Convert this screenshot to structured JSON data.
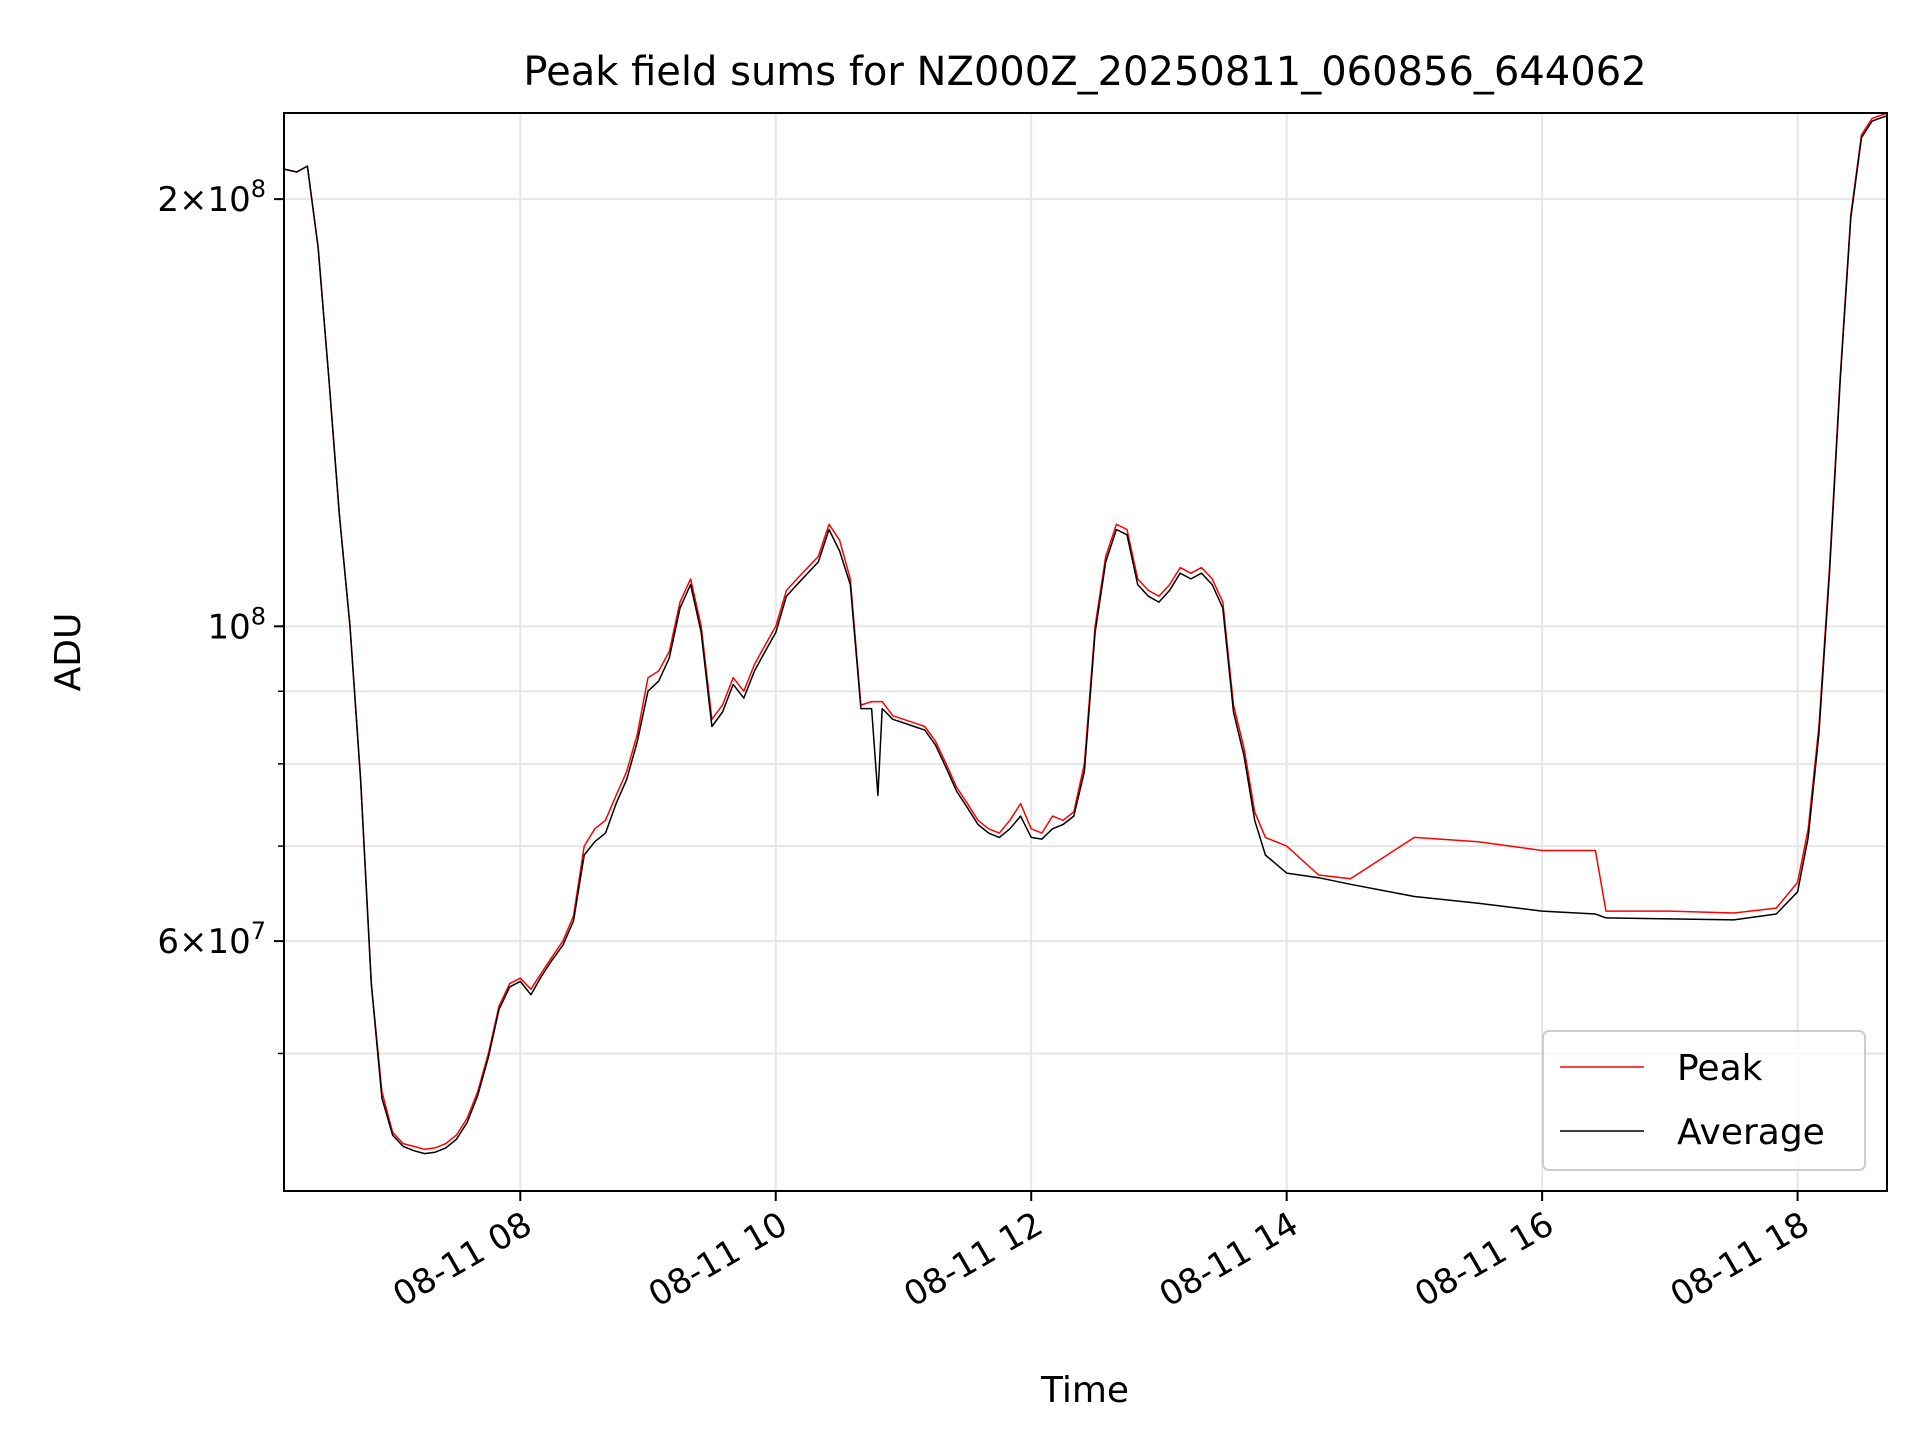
{
  "chart_data": {
    "type": "line",
    "title": "Peak field sums for NZ000Z_20250811_060856_644062",
    "xlabel": "Time",
    "ylabel": "ADU",
    "y_scale": "log",
    "x_range": [
      "2025-08-11 06:09",
      "2025-08-11 18:42"
    ],
    "ylim": [
      40000000,
      230000000
    ],
    "grid": true,
    "legend_position": "lower right",
    "x_ticks": [
      {
        "t": "2025-08-11 08:00",
        "label": "08-11 08"
      },
      {
        "t": "2025-08-11 10:00",
        "label": "08-11 10"
      },
      {
        "t": "2025-08-11 12:00",
        "label": "08-11 12"
      },
      {
        "t": "2025-08-11 14:00",
        "label": "08-11 14"
      },
      {
        "t": "2025-08-11 16:00",
        "label": "08-11 16"
      },
      {
        "t": "2025-08-11 18:00",
        "label": "08-11 18"
      }
    ],
    "y_major_ticks": [
      {
        "value": 60000000,
        "mantissa": "6",
        "exponent": "7"
      },
      {
        "value": 100000000,
        "mantissa": "",
        "exponent": "8"
      },
      {
        "value": 200000000,
        "mantissa": "2",
        "exponent": "8"
      }
    ],
    "y_minor_ticks": [
      50000000,
      70000000,
      80000000,
      90000000
    ],
    "series": [
      {
        "name": "Peak",
        "color": "#ff0000",
        "points": [
          [
            "2025-08-11 06:09",
            210000000
          ],
          [
            "2025-08-11 06:15",
            209000000
          ],
          [
            "2025-08-11 06:20",
            211000000
          ],
          [
            "2025-08-11 06:25",
            185000000
          ],
          [
            "2025-08-11 06:30",
            150000000
          ],
          [
            "2025-08-11 06:35",
            120000000
          ],
          [
            "2025-08-11 06:40",
            100000000
          ],
          [
            "2025-08-11 06:45",
            78000000
          ],
          [
            "2025-08-11 06:50",
            56000000
          ],
          [
            "2025-08-11 06:55",
            47000000
          ],
          [
            "2025-08-11 07:00",
            44000000
          ],
          [
            "2025-08-11 07:05",
            43200000
          ],
          [
            "2025-08-11 07:10",
            43000000
          ],
          [
            "2025-08-11 07:15",
            42800000
          ],
          [
            "2025-08-11 07:20",
            42900000
          ],
          [
            "2025-08-11 07:25",
            43200000
          ],
          [
            "2025-08-11 07:30",
            43800000
          ],
          [
            "2025-08-11 07:35",
            45000000
          ],
          [
            "2025-08-11 07:40",
            47000000
          ],
          [
            "2025-08-11 07:45",
            50000000
          ],
          [
            "2025-08-11 07:50",
            54000000
          ],
          [
            "2025-08-11 07:55",
            56000000
          ],
          [
            "2025-08-11 08:00",
            56500000
          ],
          [
            "2025-08-11 08:05",
            55500000
          ],
          [
            "2025-08-11 08:10",
            57000000
          ],
          [
            "2025-08-11 08:15",
            58500000
          ],
          [
            "2025-08-11 08:20",
            60000000
          ],
          [
            "2025-08-11 08:25",
            62500000
          ],
          [
            "2025-08-11 08:30",
            70000000
          ],
          [
            "2025-08-11 08:35",
            72000000
          ],
          [
            "2025-08-11 08:40",
            73000000
          ],
          [
            "2025-08-11 08:45",
            76000000
          ],
          [
            "2025-08-11 08:50",
            79000000
          ],
          [
            "2025-08-11 08:55",
            84000000
          ],
          [
            "2025-08-11 09:00",
            92000000
          ],
          [
            "2025-08-11 09:05",
            93000000
          ],
          [
            "2025-08-11 09:10",
            96000000
          ],
          [
            "2025-08-11 09:15",
            104000000
          ],
          [
            "2025-08-11 09:20",
            108000000
          ],
          [
            "2025-08-11 09:25",
            100000000
          ],
          [
            "2025-08-11 09:30",
            86000000
          ],
          [
            "2025-08-11 09:35",
            88000000
          ],
          [
            "2025-08-11 09:40",
            92000000
          ],
          [
            "2025-08-11 09:45",
            90000000
          ],
          [
            "2025-08-11 09:50",
            94000000
          ],
          [
            "2025-08-11 09:55",
            97000000
          ],
          [
            "2025-08-11 10:00",
            100000000
          ],
          [
            "2025-08-11 10:05",
            106000000
          ],
          [
            "2025-08-11 10:10",
            108000000
          ],
          [
            "2025-08-11 10:15",
            110000000
          ],
          [
            "2025-08-11 10:20",
            112000000
          ],
          [
            "2025-08-11 10:25",
            118000000
          ],
          [
            "2025-08-11 10:30",
            115000000
          ],
          [
            "2025-08-11 10:35",
            108000000
          ],
          [
            "2025-08-11 10:40",
            88000000
          ],
          [
            "2025-08-11 10:45",
            88500000
          ],
          [
            "2025-08-11 10:50",
            88500000
          ],
          [
            "2025-08-11 10:55",
            86500000
          ],
          [
            "2025-08-11 11:00",
            86000000
          ],
          [
            "2025-08-11 11:05",
            85500000
          ],
          [
            "2025-08-11 11:10",
            85000000
          ],
          [
            "2025-08-11 11:15",
            83000000
          ],
          [
            "2025-08-11 11:20",
            80000000
          ],
          [
            "2025-08-11 11:25",
            77000000
          ],
          [
            "2025-08-11 11:30",
            75000000
          ],
          [
            "2025-08-11 11:35",
            73000000
          ],
          [
            "2025-08-11 11:40",
            72000000
          ],
          [
            "2025-08-11 11:45",
            71500000
          ],
          [
            "2025-08-11 11:50",
            73000000
          ],
          [
            "2025-08-11 11:55",
            75000000
          ],
          [
            "2025-08-11 12:00",
            72000000
          ],
          [
            "2025-08-11 12:05",
            71500000
          ],
          [
            "2025-08-11 12:10",
            73500000
          ],
          [
            "2025-08-11 12:15",
            73000000
          ],
          [
            "2025-08-11 12:20",
            74000000
          ],
          [
            "2025-08-11 12:25",
            80000000
          ],
          [
            "2025-08-11 12:30",
            100000000
          ],
          [
            "2025-08-11 12:35",
            112000000
          ],
          [
            "2025-08-11 12:40",
            118000000
          ],
          [
            "2025-08-11 12:45",
            117000000
          ],
          [
            "2025-08-11 12:50",
            108000000
          ],
          [
            "2025-08-11 12:55",
            106000000
          ],
          [
            "2025-08-11 13:00",
            105000000
          ],
          [
            "2025-08-11 13:05",
            107000000
          ],
          [
            "2025-08-11 13:10",
            110000000
          ],
          [
            "2025-08-11 13:15",
            109000000
          ],
          [
            "2025-08-11 13:20",
            110000000
          ],
          [
            "2025-08-11 13:25",
            108000000
          ],
          [
            "2025-08-11 13:30",
            104000000
          ],
          [
            "2025-08-11 13:35",
            88000000
          ],
          [
            "2025-08-11 13:40",
            82000000
          ],
          [
            "2025-08-11 13:45",
            74000000
          ],
          [
            "2025-08-11 13:50",
            71000000
          ],
          [
            "2025-08-11 14:00",
            70000000
          ],
          [
            "2025-08-11 14:15",
            66800000
          ],
          [
            "2025-08-11 14:30",
            66400000
          ],
          [
            "2025-08-11 15:00",
            71000000
          ],
          [
            "2025-08-11 15:30",
            70500000
          ],
          [
            "2025-08-11 16:00",
            69500000
          ],
          [
            "2025-08-11 16:25",
            69500000
          ],
          [
            "2025-08-11 16:30",
            63000000
          ],
          [
            "2025-08-11 17:00",
            63000000
          ],
          [
            "2025-08-11 17:30",
            62800000
          ],
          [
            "2025-08-11 17:50",
            63300000
          ],
          [
            "2025-08-11 18:00",
            66000000
          ],
          [
            "2025-08-11 18:05",
            72000000
          ],
          [
            "2025-08-11 18:10",
            85000000
          ],
          [
            "2025-08-11 18:15",
            110000000
          ],
          [
            "2025-08-11 18:20",
            150000000
          ],
          [
            "2025-08-11 18:25",
            195000000
          ],
          [
            "2025-08-11 18:30",
            222000000
          ],
          [
            "2025-08-11 18:35",
            228000000
          ],
          [
            "2025-08-11 18:42",
            230000000
          ]
        ]
      },
      {
        "name": "Average",
        "color": "#000000",
        "points": [
          [
            "2025-08-11 06:09",
            210000000
          ],
          [
            "2025-08-11 06:15",
            209000000
          ],
          [
            "2025-08-11 06:20",
            211000000
          ],
          [
            "2025-08-11 06:25",
            185000000
          ],
          [
            "2025-08-11 06:30",
            150000000
          ],
          [
            "2025-08-11 06:35",
            120000000
          ],
          [
            "2025-08-11 06:40",
            100000000
          ],
          [
            "2025-08-11 06:45",
            78000000
          ],
          [
            "2025-08-11 06:50",
            56000000
          ],
          [
            "2025-08-11 06:55",
            46500000
          ],
          [
            "2025-08-11 07:00",
            43800000
          ],
          [
            "2025-08-11 07:05",
            43000000
          ],
          [
            "2025-08-11 07:10",
            42700000
          ],
          [
            "2025-08-11 07:15",
            42500000
          ],
          [
            "2025-08-11 07:20",
            42600000
          ],
          [
            "2025-08-11 07:25",
            42900000
          ],
          [
            "2025-08-11 07:30",
            43500000
          ],
          [
            "2025-08-11 07:35",
            44700000
          ],
          [
            "2025-08-11 07:40",
            46700000
          ],
          [
            "2025-08-11 07:45",
            49700000
          ],
          [
            "2025-08-11 07:50",
            53700000
          ],
          [
            "2025-08-11 07:55",
            55700000
          ],
          [
            "2025-08-11 08:00",
            56200000
          ],
          [
            "2025-08-11 08:05",
            55000000
          ],
          [
            "2025-08-11 08:10",
            56700000
          ],
          [
            "2025-08-11 08:15",
            58200000
          ],
          [
            "2025-08-11 08:20",
            59600000
          ],
          [
            "2025-08-11 08:25",
            62000000
          ],
          [
            "2025-08-11 08:30",
            69000000
          ],
          [
            "2025-08-11 08:35",
            70500000
          ],
          [
            "2025-08-11 08:40",
            71500000
          ],
          [
            "2025-08-11 08:45",
            75000000
          ],
          [
            "2025-08-11 08:50",
            78000000
          ],
          [
            "2025-08-11 08:55",
            83000000
          ],
          [
            "2025-08-11 09:00",
            90000000
          ],
          [
            "2025-08-11 09:05",
            91500000
          ],
          [
            "2025-08-11 09:10",
            95000000
          ],
          [
            "2025-08-11 09:15",
            103000000
          ],
          [
            "2025-08-11 09:20",
            107000000
          ],
          [
            "2025-08-11 09:25",
            99000000
          ],
          [
            "2025-08-11 09:30",
            85000000
          ],
          [
            "2025-08-11 09:35",
            87000000
          ],
          [
            "2025-08-11 09:40",
            91000000
          ],
          [
            "2025-08-11 09:45",
            89000000
          ],
          [
            "2025-08-11 09:50",
            93000000
          ],
          [
            "2025-08-11 09:55",
            96000000
          ],
          [
            "2025-08-11 10:00",
            99000000
          ],
          [
            "2025-08-11 10:05",
            105000000
          ],
          [
            "2025-08-11 10:10",
            107000000
          ],
          [
            "2025-08-11 10:15",
            109000000
          ],
          [
            "2025-08-11 10:20",
            111000000
          ],
          [
            "2025-08-11 10:25",
            117000000
          ],
          [
            "2025-08-11 10:30",
            113000000
          ],
          [
            "2025-08-11 10:35",
            107000000
          ],
          [
            "2025-08-11 10:40",
            87500000
          ],
          [
            "2025-08-11 10:45",
            87500000
          ],
          [
            "2025-08-11 10:48",
            76000000
          ],
          [
            "2025-08-11 10:50",
            87500000
          ],
          [
            "2025-08-11 10:55",
            86000000
          ],
          [
            "2025-08-11 11:00",
            85500000
          ],
          [
            "2025-08-11 11:05",
            85000000
          ],
          [
            "2025-08-11 11:10",
            84500000
          ],
          [
            "2025-08-11 11:15",
            82500000
          ],
          [
            "2025-08-11 11:20",
            79500000
          ],
          [
            "2025-08-11 11:25",
            76500000
          ],
          [
            "2025-08-11 11:30",
            74500000
          ],
          [
            "2025-08-11 11:35",
            72500000
          ],
          [
            "2025-08-11 11:40",
            71500000
          ],
          [
            "2025-08-11 11:45",
            71000000
          ],
          [
            "2025-08-11 11:50",
            72000000
          ],
          [
            "2025-08-11 11:55",
            73500000
          ],
          [
            "2025-08-11 12:00",
            71000000
          ],
          [
            "2025-08-11 12:05",
            70800000
          ],
          [
            "2025-08-11 12:10",
            72000000
          ],
          [
            "2025-08-11 12:15",
            72500000
          ],
          [
            "2025-08-11 12:20",
            73500000
          ],
          [
            "2025-08-11 12:25",
            79000000
          ],
          [
            "2025-08-11 12:30",
            99000000
          ],
          [
            "2025-08-11 12:35",
            111000000
          ],
          [
            "2025-08-11 12:40",
            117000000
          ],
          [
            "2025-08-11 12:45",
            116000000
          ],
          [
            "2025-08-11 12:50",
            107000000
          ],
          [
            "2025-08-11 12:55",
            105000000
          ],
          [
            "2025-08-11 13:00",
            104000000
          ],
          [
            "2025-08-11 13:05",
            106000000
          ],
          [
            "2025-08-11 13:10",
            109000000
          ],
          [
            "2025-08-11 13:15",
            108000000
          ],
          [
            "2025-08-11 13:20",
            109000000
          ],
          [
            "2025-08-11 13:25",
            107000000
          ],
          [
            "2025-08-11 13:30",
            103000000
          ],
          [
            "2025-08-11 13:35",
            87000000
          ],
          [
            "2025-08-11 13:40",
            81000000
          ],
          [
            "2025-08-11 13:45",
            73000000
          ],
          [
            "2025-08-11 13:50",
            69000000
          ],
          [
            "2025-08-11 14:00",
            67000000
          ],
          [
            "2025-08-11 14:15",
            66500000
          ],
          [
            "2025-08-11 14:30",
            65800000
          ],
          [
            "2025-08-11 15:00",
            64500000
          ],
          [
            "2025-08-11 15:30",
            63800000
          ],
          [
            "2025-08-11 16:00",
            63000000
          ],
          [
            "2025-08-11 16:25",
            62700000
          ],
          [
            "2025-08-11 16:30",
            62300000
          ],
          [
            "2025-08-11 17:00",
            62200000
          ],
          [
            "2025-08-11 17:30",
            62100000
          ],
          [
            "2025-08-11 17:50",
            62700000
          ],
          [
            "2025-08-11 18:00",
            65000000
          ],
          [
            "2025-08-11 18:05",
            71000000
          ],
          [
            "2025-08-11 18:10",
            84000000
          ],
          [
            "2025-08-11 18:15",
            109000000
          ],
          [
            "2025-08-11 18:20",
            149000000
          ],
          [
            "2025-08-11 18:25",
            194000000
          ],
          [
            "2025-08-11 18:30",
            221000000
          ],
          [
            "2025-08-11 18:35",
            227000000
          ],
          [
            "2025-08-11 18:42",
            229000000
          ]
        ]
      }
    ],
    "legend": [
      "Peak",
      "Average"
    ]
  }
}
